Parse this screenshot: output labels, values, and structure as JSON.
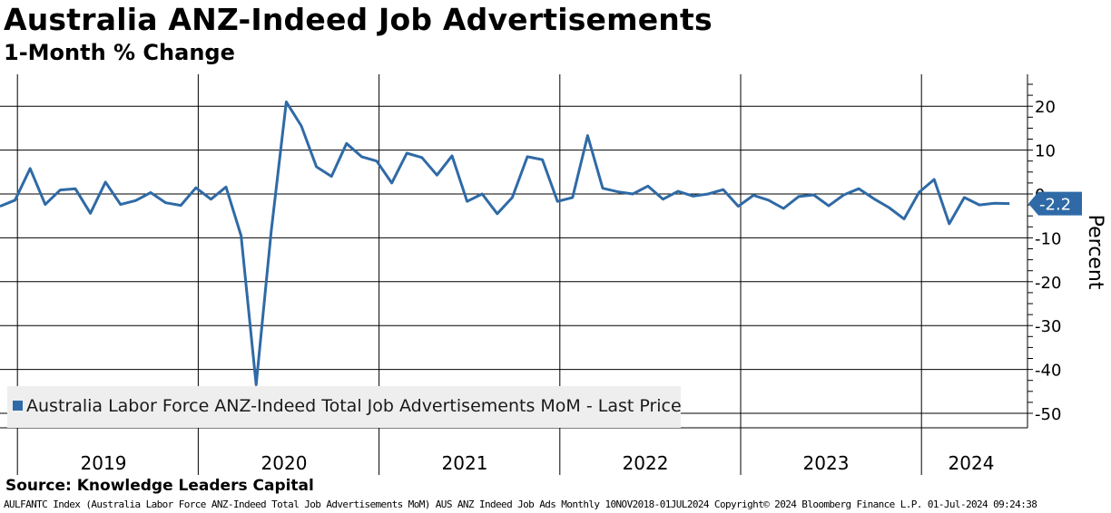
{
  "title": "Australia ANZ-Indeed Job Advertisements",
  "subtitle": "1-Month % Change",
  "source": "Source: Knowledge Leaders Capital",
  "footer": "AULFANTC Index (Australia Labor Force ANZ-Indeed Total Job Advertisements MoM) AUS ANZ Indeed Job Ads  Monthly 10NOV2018-01JUL2024  Copyright© 2024 Bloomberg Finance L.P.  01-Jul-2024 09:24:38",
  "colors": {
    "series": "#2f6aa6",
    "grid": "#000000",
    "legend_bg": "#eeeeee"
  },
  "chart_data": {
    "type": "line",
    "ylabel": "Percent",
    "ylim": [
      -50,
      25
    ],
    "yticks": [
      20,
      10,
      0,
      -10,
      -20,
      -30,
      -40,
      -50
    ],
    "grid": true,
    "legend_position": "bottom-left",
    "year_labels": [
      "2019",
      "2020",
      "2021",
      "2022",
      "2023",
      "2024"
    ],
    "last_value_label": "-2.2",
    "series": [
      {
        "name": "Australia Labor Force ANZ-Indeed Total Job Advertisements MoM - Last Price",
        "color": "#2f6aa6",
        "x": [
          "2018-11",
          "2018-12",
          "2019-01",
          "2019-02",
          "2019-03",
          "2019-04",
          "2019-05",
          "2019-06",
          "2019-07",
          "2019-08",
          "2019-09",
          "2019-10",
          "2019-11",
          "2019-12",
          "2020-01",
          "2020-02",
          "2020-03",
          "2020-04",
          "2020-05",
          "2020-06",
          "2020-07",
          "2020-08",
          "2020-09",
          "2020-10",
          "2020-11",
          "2020-12",
          "2021-01",
          "2021-02",
          "2021-03",
          "2021-04",
          "2021-05",
          "2021-06",
          "2021-07",
          "2021-08",
          "2021-09",
          "2021-10",
          "2021-11",
          "2021-12",
          "2022-01",
          "2022-02",
          "2022-03",
          "2022-04",
          "2022-05",
          "2022-06",
          "2022-07",
          "2022-08",
          "2022-09",
          "2022-10",
          "2022-11",
          "2022-12",
          "2023-01",
          "2023-02",
          "2023-03",
          "2023-04",
          "2023-05",
          "2023-06",
          "2023-07",
          "2023-08",
          "2023-09",
          "2023-10",
          "2023-11",
          "2023-12",
          "2024-01",
          "2024-02",
          "2024-03",
          "2024-04",
          "2024-05",
          "2024-06"
        ],
        "values": [
          -2.8,
          -1.4,
          5.8,
          -2.4,
          0.9,
          1.2,
          -4.4,
          2.7,
          -2.4,
          -1.5,
          0.3,
          -2.0,
          -2.6,
          1.4,
          -1.2,
          1.6,
          -9.5,
          -43.5,
          -8.5,
          21.0,
          15.5,
          6.2,
          4.0,
          11.5,
          8.5,
          7.5,
          2.5,
          9.3,
          8.3,
          4.3,
          8.7,
          -1.7,
          0.0,
          -4.5,
          -0.8,
          8.5,
          7.8,
          -1.7,
          -0.8,
          13.3,
          1.3,
          0.5,
          0.0,
          1.8,
          -1.2,
          0.6,
          -0.5,
          0.0,
          1.0,
          -2.8,
          -0.3,
          -1.4,
          -3.3,
          -0.6,
          -0.2,
          -2.7,
          -0.2,
          1.2,
          -1.1,
          -3.1,
          -5.7,
          0.4,
          3.3,
          -6.8,
          -0.8,
          -2.5,
          -2.1,
          -2.2
        ]
      }
    ]
  }
}
